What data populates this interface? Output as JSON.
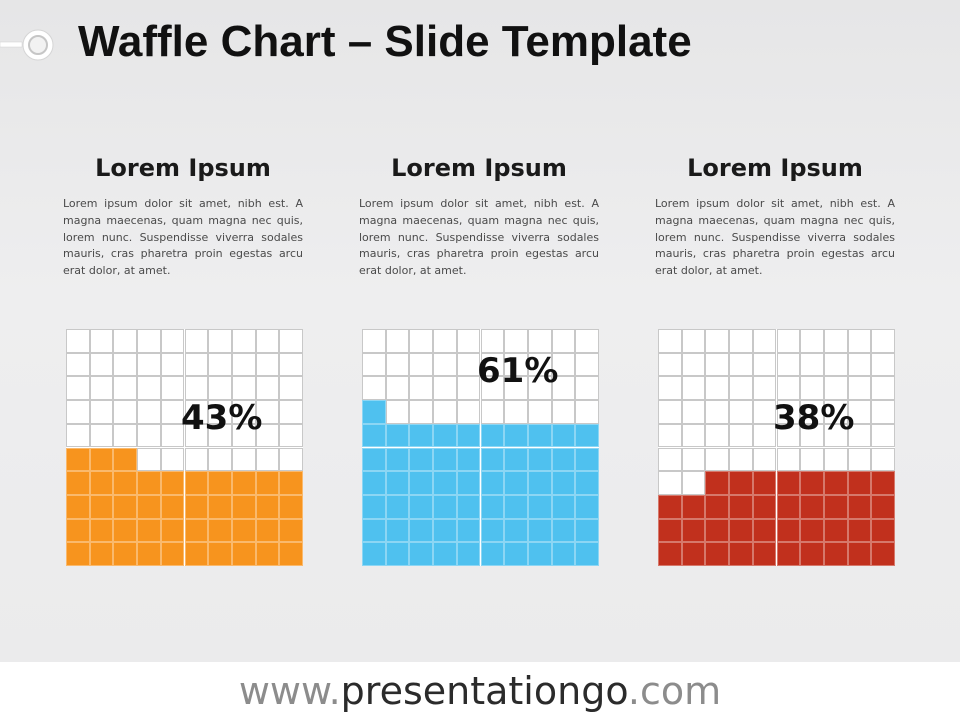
{
  "title": "Waffle Chart – Slide Template",
  "panels": [
    {
      "heading": "Lorem Ipsum",
      "body": "Lorem ipsum dolor sit amet, nibh est. A magna maecenas, quam magna nec quis, lorem nunc. Suspendisse viverra sodales mauris, cras pharetra proin egestas arcu erat dolor, at amet."
    },
    {
      "heading": "Lorem Ipsum",
      "body": "Lorem ipsum dolor sit amet, nibh est. A magna maecenas, quam magna nec quis, lorem nunc. Suspendisse viverra sodales mauris, cras pharetra proin egestas arcu erat dolor, at amet."
    },
    {
      "heading": "Lorem Ipsum",
      "body": "Lorem ipsum dolor sit amet, nibh est. A magna maecenas, quam magna nec quis, lorem nunc. Suspendisse viverra sodales mauris, cras pharetra proin egestas arcu erat dolor, at amet."
    }
  ],
  "chart_data": [
    {
      "type": "waffle",
      "grid": [
        10,
        10
      ],
      "value": 43,
      "label": "43%",
      "fill_from": "bottom-left",
      "color": "#f7941e",
      "empty_color": "#ffffff"
    },
    {
      "type": "waffle",
      "grid": [
        10,
        10
      ],
      "value": 61,
      "label": "61%",
      "fill_from": "bottom-left",
      "color": "#4fc1ef",
      "empty_color": "#ffffff"
    },
    {
      "type": "waffle",
      "grid": [
        10,
        10
      ],
      "value": 38,
      "label": "38%",
      "fill_from": "bottom-right",
      "color": "#c1301d",
      "empty_color": "#ffffff"
    }
  ],
  "footer": {
    "prefix": "www.",
    "brand": "presentationgo",
    "suffix": ".com"
  },
  "colors": {
    "grid_line": "#c8c8c8",
    "text_dark": "#111111",
    "footer_light": "#8c8c8c",
    "footer_dark": "#2b2b2b"
  }
}
